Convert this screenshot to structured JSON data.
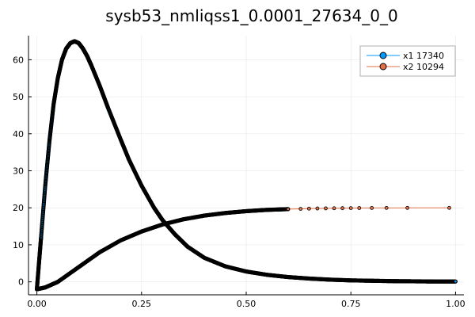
{
  "chart_data": {
    "type": "scatter",
    "title": "sysb53_nmliqss1_0.0001_27634_0_0",
    "xlabel": "",
    "ylabel": "",
    "xlim": [
      -0.02,
      1.02
    ],
    "ylim": [
      -3.5,
      66.5
    ],
    "xticks": [
      0.0,
      0.25,
      0.5,
      0.75,
      1.0
    ],
    "xtick_labels": [
      "0.00",
      "0.25",
      "0.50",
      "0.75",
      "1.00"
    ],
    "yticks": [
      0,
      10,
      20,
      30,
      40,
      50,
      60
    ],
    "ytick_labels": [
      "0",
      "10",
      "20",
      "30",
      "40",
      "50",
      "60"
    ],
    "grid": true,
    "legend_position": "top-right",
    "series": [
      {
        "name": "x1 17340",
        "color": "#009AFA",
        "x": [
          0.0,
          0.005,
          0.01,
          0.02,
          0.03,
          0.04,
          0.05,
          0.06,
          0.07,
          0.08,
          0.09,
          0.1,
          0.11,
          0.12,
          0.13,
          0.15,
          0.17,
          0.2,
          0.22,
          0.25,
          0.28,
          0.3,
          0.33,
          0.36,
          0.4,
          0.45,
          0.5,
          0.55,
          0.6,
          0.65,
          0.7,
          0.75,
          0.8,
          0.85,
          0.9,
          0.95,
          1.0
        ],
        "y": [
          -2,
          5,
          12,
          26,
          38,
          48,
          55,
          60,
          63,
          64.5,
          65,
          64.5,
          63,
          61,
          58.5,
          53,
          47,
          38.5,
          33,
          26,
          20,
          16.7,
          12.8,
          9.5,
          6.5,
          4.2,
          2.8,
          1.9,
          1.3,
          0.9,
          0.6,
          0.4,
          0.3,
          0.2,
          0.15,
          0.1,
          0.1
        ]
      },
      {
        "name": "x2 10294",
        "color": "#E26F46",
        "x": [
          0.0,
          0.02,
          0.05,
          0.1,
          0.15,
          0.2,
          0.25,
          0.3,
          0.35,
          0.4,
          0.45,
          0.5,
          0.55,
          0.6,
          0.63,
          0.65,
          0.67,
          0.69,
          0.71,
          0.73,
          0.75,
          0.77,
          0.8,
          0.835,
          0.885,
          0.985
        ],
        "y": [
          -2,
          -1.5,
          0,
          4,
          8,
          11.2,
          13.6,
          15.5,
          16.9,
          17.9,
          18.6,
          19.1,
          19.45,
          19.65,
          19.72,
          19.78,
          19.82,
          19.85,
          19.88,
          19.9,
          19.92,
          19.94,
          19.96,
          19.97,
          19.98,
          19.99
        ]
      }
    ]
  }
}
